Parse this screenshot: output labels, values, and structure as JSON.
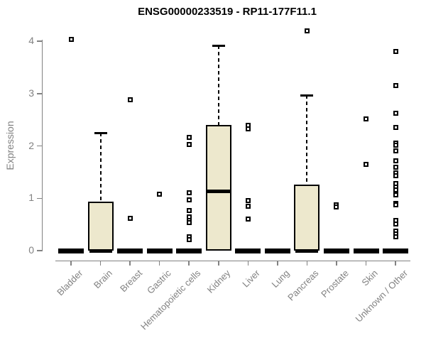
{
  "title": "ENSG00000233519 - RP11-177F11.1",
  "chart_data": {
    "type": "boxplot",
    "title": "ENSG00000233519 - RP11-177F11.1",
    "xlabel": "",
    "ylabel": "Expression",
    "ylim": [
      0,
      4.3
    ],
    "y_ticks": [
      0,
      1,
      2,
      3,
      4
    ],
    "grid": false,
    "legend": "none",
    "box_fill_color": "#EDE8CD",
    "box_line_color": "#000000",
    "axis_color": "#828282",
    "categories": [
      "Bladder",
      "Brain",
      "Breast",
      "Gastric",
      "Hematopoietic cells",
      "Kidney",
      "Liver",
      "Lung",
      "Pancreas",
      "Prostate",
      "Skin",
      "Unknown / Other"
    ],
    "boxes": [
      {
        "category": "Bladder",
        "q1": 0,
        "median": 0,
        "q3": 0,
        "whisker_low": 0,
        "whisker_high": 0,
        "outliers": [
          4.04
        ]
      },
      {
        "category": "Brain",
        "q1": 0,
        "median": 0,
        "q3": 0.93,
        "whisker_low": 0,
        "whisker_high": 2.25,
        "outliers": []
      },
      {
        "category": "Breast",
        "q1": 0,
        "median": 0,
        "q3": 0,
        "whisker_low": 0,
        "whisker_high": 0,
        "outliers": [
          2.88,
          0.62
        ]
      },
      {
        "category": "Gastric",
        "q1": 0,
        "median": 0,
        "q3": 0,
        "whisker_low": 0,
        "whisker_high": 0,
        "outliers": [
          1.08
        ]
      },
      {
        "category": "Hematopoietic cells",
        "q1": 0,
        "median": 0,
        "q3": 0,
        "whisker_low": 0,
        "whisker_high": 0,
        "outliers": [
          2.16,
          2.03,
          1.1,
          0.97,
          0.77,
          0.64,
          0.58,
          0.53,
          0.26,
          0.21
        ]
      },
      {
        "category": "Kidney",
        "q1": 0,
        "median": 1.13,
        "q3": 2.4,
        "whisker_low": 0,
        "whisker_high": 3.92,
        "outliers": []
      },
      {
        "category": "Liver",
        "q1": 0,
        "median": 0,
        "q3": 0,
        "whisker_low": 0,
        "whisker_high": 0,
        "outliers": [
          2.39,
          2.33,
          0.95,
          0.85,
          0.6
        ]
      },
      {
        "category": "Lung",
        "q1": 0,
        "median": 0,
        "q3": 0,
        "whisker_low": 0,
        "whisker_high": 0,
        "outliers": []
      },
      {
        "category": "Pancreas",
        "q1": 0,
        "median": 0,
        "q3": 1.26,
        "whisker_low": 0,
        "whisker_high": 2.97,
        "outliers": [
          4.2
        ]
      },
      {
        "category": "Prostate",
        "q1": 0,
        "median": 0,
        "q3": 0,
        "whisker_low": 0,
        "whisker_high": 0,
        "outliers": [
          0.87,
          0.84
        ]
      },
      {
        "category": "Skin",
        "q1": 0,
        "median": 0,
        "q3": 0,
        "whisker_low": 0,
        "whisker_high": 0,
        "outliers": [
          2.52,
          1.65
        ]
      },
      {
        "category": "Unknown / Other",
        "q1": 0,
        "median": 0,
        "q3": 0,
        "whisker_low": 0,
        "whisker_high": 0,
        "outliers": [
          3.8,
          3.16,
          2.62,
          2.35,
          2.06,
          2.01,
          1.91,
          1.71,
          1.6,
          1.48,
          1.43,
          1.28,
          1.22,
          1.16,
          1.07,
          0.9,
          0.87,
          0.58,
          0.51,
          0.37,
          0.32,
          0.27
        ]
      }
    ]
  }
}
